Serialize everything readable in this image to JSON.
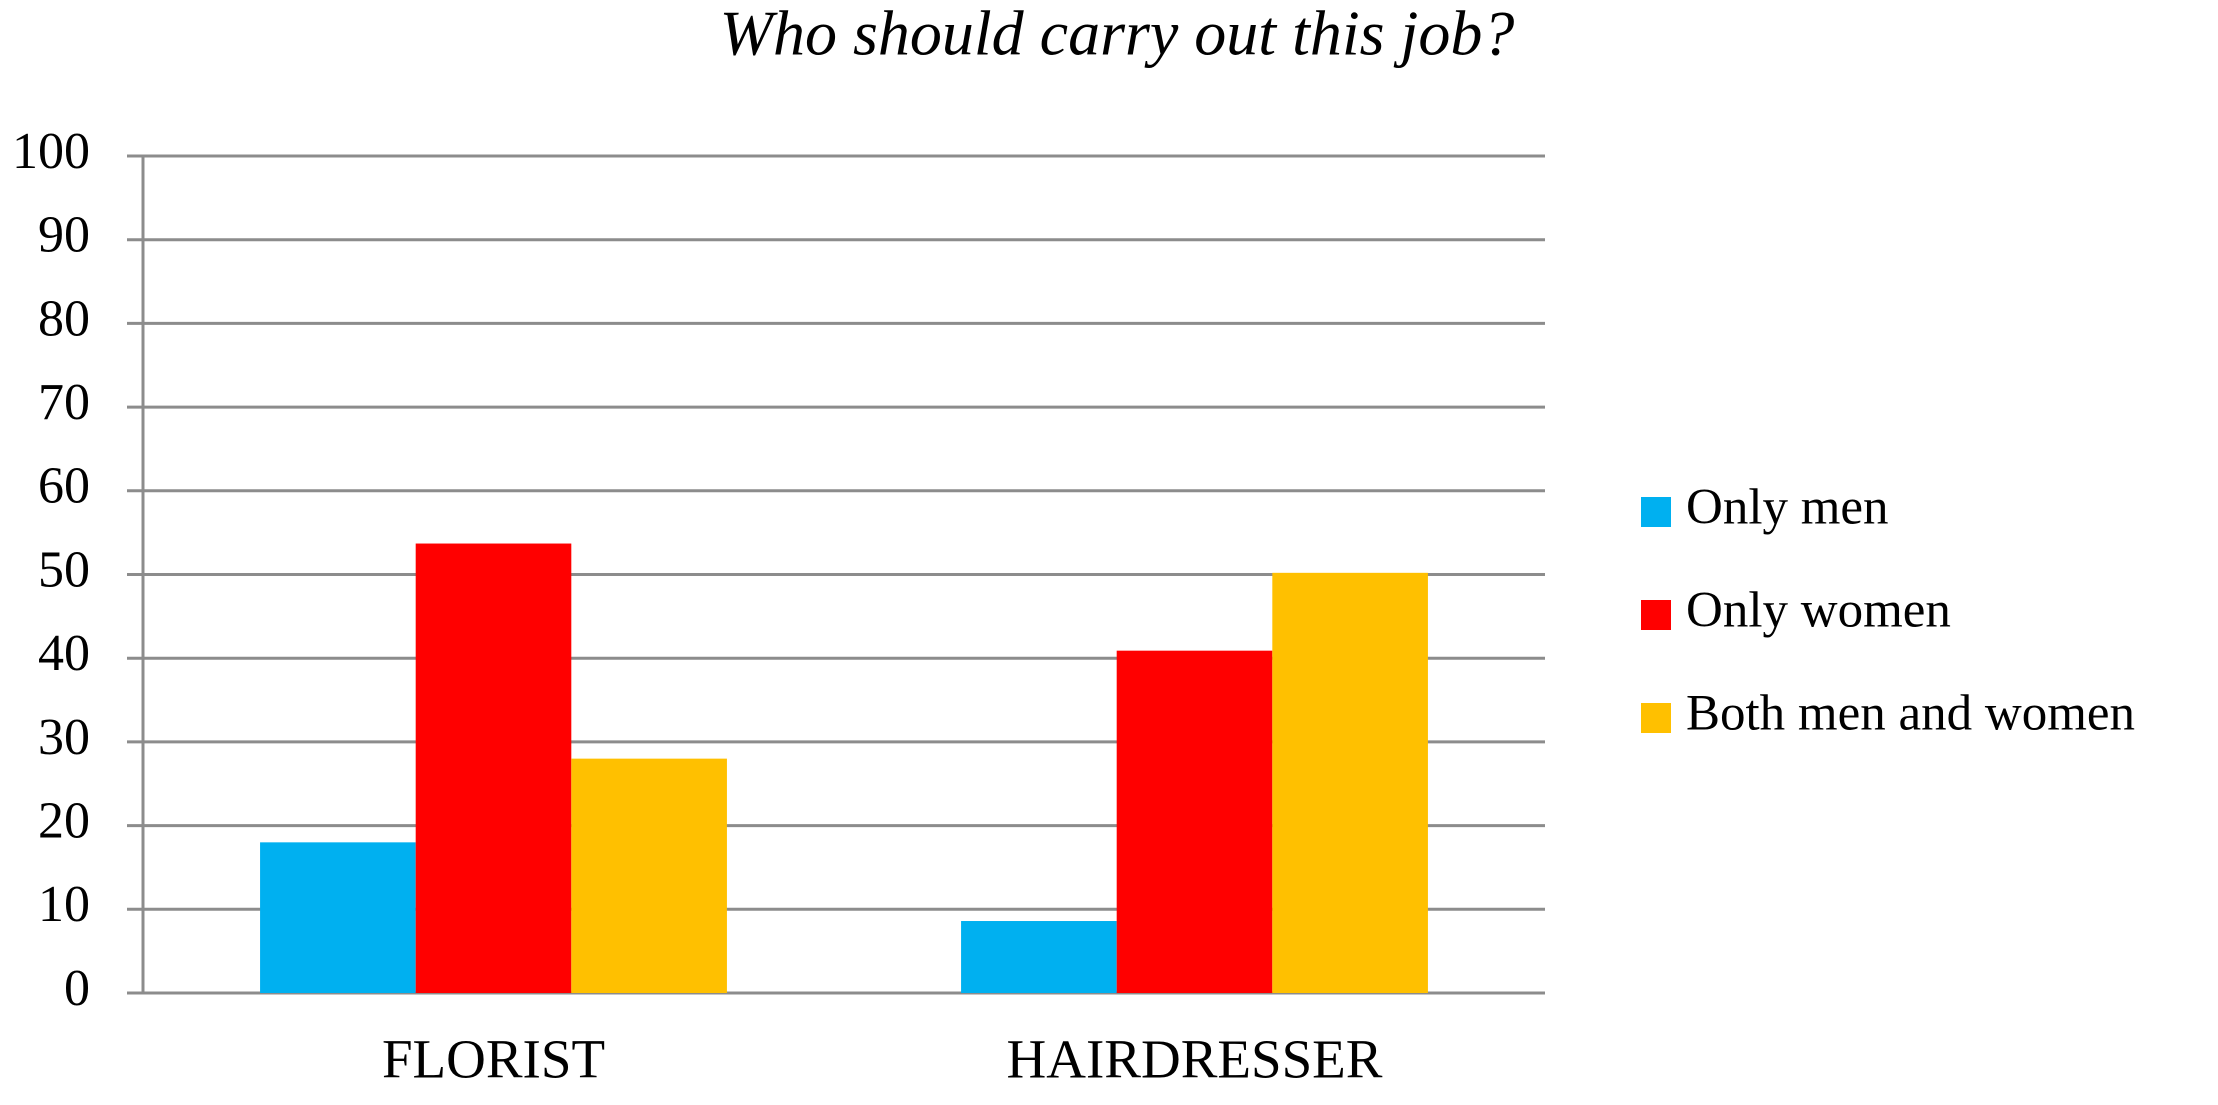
{
  "chart_data": {
    "type": "bar",
    "title": "Who should carry out this job?",
    "categories": [
      "FLORIST",
      "HAIRDRESSER"
    ],
    "series": [
      {
        "name": "Only men",
        "color": "#00b0f0",
        "values": [
          18,
          8.6
        ]
      },
      {
        "name": "Only women",
        "color": "#ff0000",
        "values": [
          53.7,
          40.9
        ]
      },
      {
        "name": "Both men and women",
        "color": "#ffc000",
        "values": [
          28,
          50.2
        ]
      }
    ],
    "ylim": [
      0,
      100
    ],
    "yticks": [
      0,
      10,
      20,
      30,
      40,
      50,
      60,
      70,
      80,
      90,
      100
    ],
    "grid": true,
    "legend": "right"
  }
}
